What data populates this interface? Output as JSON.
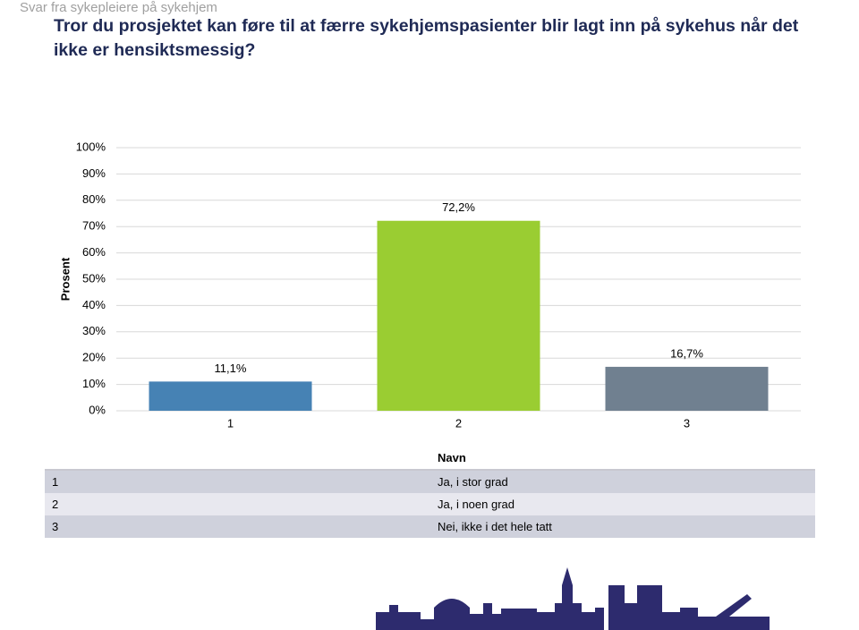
{
  "header": "Svar fra sykepleiere på sykehjem",
  "chart_data": {
    "type": "bar",
    "title": "Tror du prosjektet kan føre til at færre sykehjemspasienter blir lagt inn på sykehus når det ikke er hensiktsmessig?",
    "y_label": "Prosent",
    "categories": [
      "1",
      "2",
      "3"
    ],
    "series": [
      {
        "name": "Prosent",
        "values": [
          11.1,
          72.2,
          16.7
        ],
        "value_labels": [
          "11,1%",
          "72,2%",
          "16,7%"
        ],
        "colors": [
          "#4682b4",
          "#9acd32",
          "#708090"
        ]
      }
    ],
    "ylim": [
      0,
      100
    ],
    "yticks": [
      {
        "value": 0,
        "label": "0%"
      },
      {
        "value": 10,
        "label": "10%"
      },
      {
        "value": 20,
        "label": "20%"
      },
      {
        "value": 30,
        "label": "30%"
      },
      {
        "value": 40,
        "label": "40%"
      },
      {
        "value": 50,
        "label": "50%"
      },
      {
        "value": 60,
        "label": "60%"
      },
      {
        "value": 70,
        "label": "70%"
      },
      {
        "value": 80,
        "label": "80%"
      },
      {
        "value": 90,
        "label": "90%"
      },
      {
        "value": 100,
        "label": "100%"
      }
    ],
    "grid": true
  },
  "table": {
    "header": "Navn",
    "rows": [
      [
        "1",
        "Ja, i stor grad"
      ],
      [
        "2",
        "Ja, i noen grad"
      ],
      [
        "3",
        "Nei, ikke i det hele tatt"
      ]
    ]
  }
}
